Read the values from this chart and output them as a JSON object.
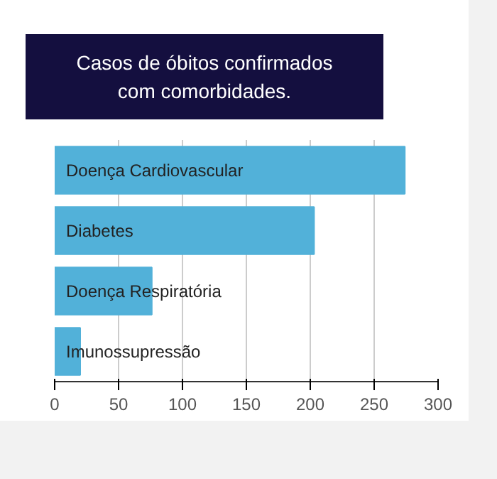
{
  "chart_data": {
    "type": "bar",
    "orientation": "horizontal",
    "title": "Casos de óbitos confirmados com comorbidades.",
    "categories": [
      "Doença Cardiovascular",
      "Diabetes",
      "Doença Respiratória",
      "Imunossupressão"
    ],
    "values": [
      274,
      203,
      76,
      20
    ],
    "color": "#52b1d9",
    "xlim": [
      0,
      300
    ],
    "xticks": [
      0,
      50,
      100,
      150,
      200,
      250,
      300
    ],
    "grid": "x"
  }
}
